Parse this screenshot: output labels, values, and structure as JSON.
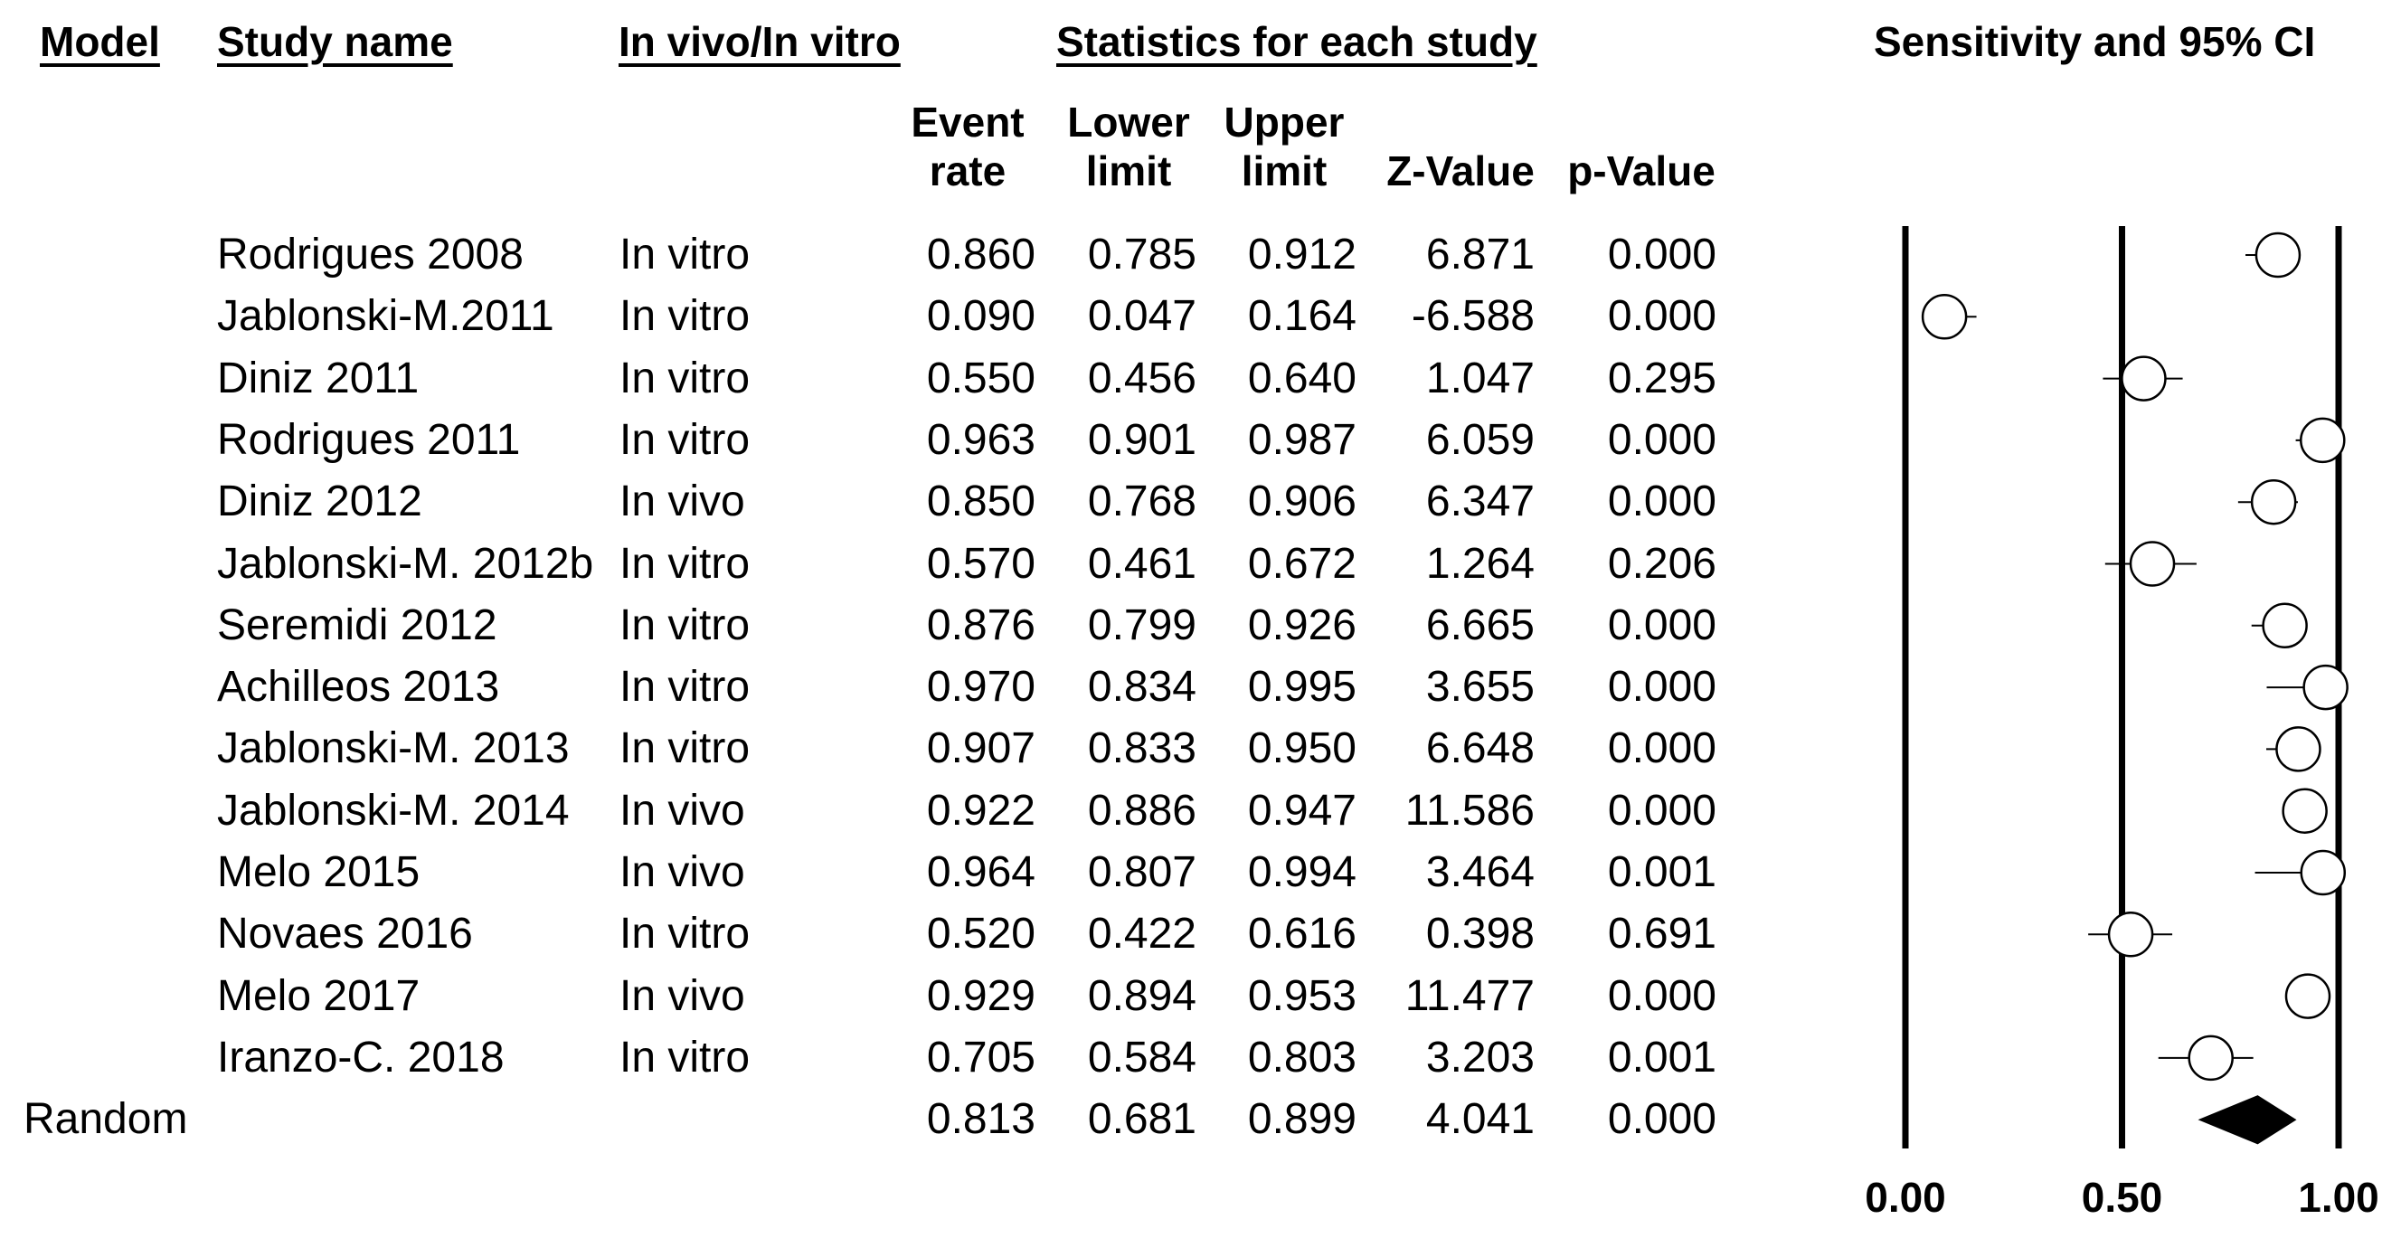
{
  "chart_data": {
    "type": "forest",
    "title": "Sensitivity and 95% CI",
    "xlim": [
      0,
      1
    ],
    "x_ticks": [
      "0.00",
      "0.50",
      "1.00"
    ],
    "headers": {
      "model": "Model",
      "study_name": "Study name",
      "in_vivo_vitro": "In vivo/In vitro",
      "statistics": "Statistics for each study",
      "event_rate": [
        "Event",
        "rate"
      ],
      "lower_limit": [
        "Lower",
        "limit"
      ],
      "upper_limit": [
        "Upper",
        "limit"
      ],
      "z_value": "Z-Value",
      "p_value": "p-Value"
    },
    "studies": [
      {
        "name": "Rodrigues 2008",
        "type": "In vitro",
        "event_rate": "0.860",
        "lower": "0.785",
        "upper": "0.912",
        "z": "6.871",
        "p": "0.000"
      },
      {
        "name": "Jablonski-M.2011",
        "type": "In vitro",
        "event_rate": "0.090",
        "lower": "0.047",
        "upper": "0.164",
        "z": "-6.588",
        "p": "0.000"
      },
      {
        "name": "Diniz 2011",
        "type": "In vitro",
        "event_rate": "0.550",
        "lower": "0.456",
        "upper": "0.640",
        "z": "1.047",
        "p": "0.295"
      },
      {
        "name": "Rodrigues 2011",
        "type": "In vitro",
        "event_rate": "0.963",
        "lower": "0.901",
        "upper": "0.987",
        "z": "6.059",
        "p": "0.000"
      },
      {
        "name": "Diniz 2012",
        "type": "In vivo",
        "event_rate": "0.850",
        "lower": "0.768",
        "upper": "0.906",
        "z": "6.347",
        "p": "0.000"
      },
      {
        "name": "Jablonski-M. 2012b",
        "type": "In vitro",
        "event_rate": "0.570",
        "lower": "0.461",
        "upper": "0.672",
        "z": "1.264",
        "p": "0.206"
      },
      {
        "name": "Seremidi 2012",
        "type": "In vitro",
        "event_rate": "0.876",
        "lower": "0.799",
        "upper": "0.926",
        "z": "6.665",
        "p": "0.000"
      },
      {
        "name": "Achilleos 2013",
        "type": "In vitro",
        "event_rate": "0.970",
        "lower": "0.834",
        "upper": "0.995",
        "z": "3.655",
        "p": "0.000"
      },
      {
        "name": "Jablonski-M. 2013",
        "type": "In vitro",
        "event_rate": "0.907",
        "lower": "0.833",
        "upper": "0.950",
        "z": "6.648",
        "p": "0.000"
      },
      {
        "name": "Jablonski-M. 2014",
        "type": "In vivo",
        "event_rate": "0.922",
        "lower": "0.886",
        "upper": "0.947",
        "z": "11.586",
        "p": "0.000"
      },
      {
        "name": "Melo 2015",
        "type": "In vivo",
        "event_rate": "0.964",
        "lower": "0.807",
        "upper": "0.994",
        "z": "3.464",
        "p": "0.001"
      },
      {
        "name": "Novaes 2016",
        "type": "In vitro",
        "event_rate": "0.520",
        "lower": "0.422",
        "upper": "0.616",
        "z": "0.398",
        "p": "0.691"
      },
      {
        "name": "Melo 2017",
        "type": "In vivo",
        "event_rate": "0.929",
        "lower": "0.894",
        "upper": "0.953",
        "z": "11.477",
        "p": "0.000"
      },
      {
        "name": "Iranzo-C. 2018",
        "type": "In vitro",
        "event_rate": "0.705",
        "lower": "0.584",
        "upper": "0.803",
        "z": "3.203",
        "p": "0.001"
      }
    ],
    "pooled": {
      "model": "Random",
      "event_rate": "0.813",
      "lower": "0.681",
      "upper": "0.899",
      "z": "4.041",
      "p": "0.000"
    }
  }
}
